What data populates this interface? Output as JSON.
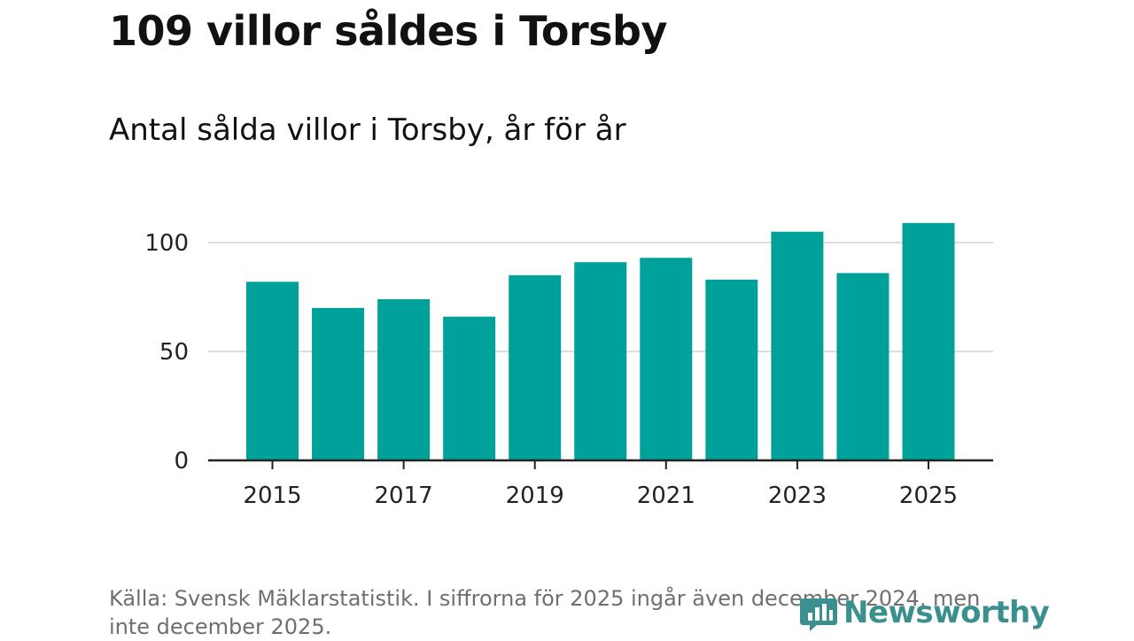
{
  "title": "109 villor såldes i Torsby",
  "subtitle": "Antal sålda villor i Torsby, år för år",
  "source": "Källa: Svensk Mäklarstatistik. I siffrorna för 2025 ingår även december 2024, men inte december 2025.",
  "logo": {
    "text": "Newsworthy",
    "color": "#3a8f8f"
  },
  "colors": {
    "bar": "#00a19a",
    "grid": "#dddddd",
    "axis": "#222222"
  },
  "chart_data": {
    "type": "bar",
    "title": "109 villor såldes i Torsby",
    "subtitle": "Antal sålda villor i Torsby, år för år",
    "categories": [
      2015,
      2016,
      2017,
      2018,
      2019,
      2020,
      2021,
      2022,
      2023,
      2024,
      2025
    ],
    "values": [
      82,
      70,
      74,
      66,
      85,
      91,
      93,
      83,
      105,
      86,
      109
    ],
    "xtick_labels": [
      "2015",
      "2017",
      "2019",
      "2021",
      "2023",
      "2025"
    ],
    "yticks": [
      0,
      50,
      100
    ],
    "ytick_labels": [
      "0",
      "50",
      "100"
    ],
    "ylim": [
      0,
      110
    ],
    "xlabel": "",
    "ylabel": "",
    "grid": true
  }
}
